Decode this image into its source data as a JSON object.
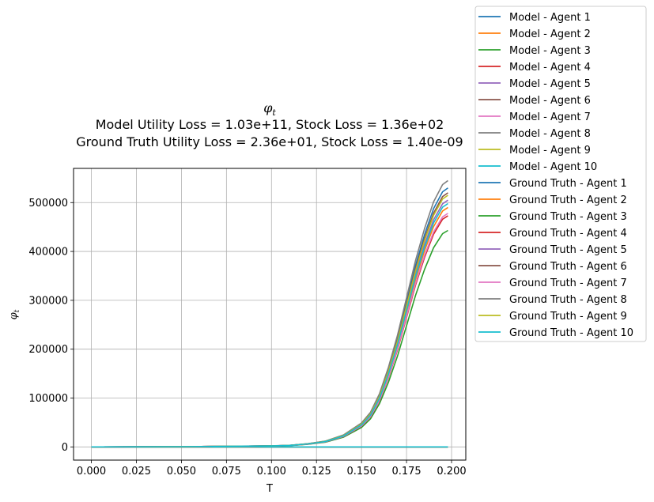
{
  "chart_data": {
    "type": "line",
    "title": "φ",
    "title_subscript": "t",
    "subtitle_lines": [
      "Model Utility Loss = 1.03e+11, Stock Loss = 1.36e+02",
      "Ground Truth Utility Loss = 2.36e+01, Stock Loss = 1.40e-09"
    ],
    "xlabel": "T",
    "ylabel": "φ",
    "ylabel_subscript": "t",
    "xlim": [
      -0.0099,
      0.2079
    ],
    "ylim": [
      -27000,
      570000
    ],
    "xticks": [
      0.0,
      0.025,
      0.05,
      0.075,
      0.1,
      0.125,
      0.15,
      0.175,
      0.2
    ],
    "xtick_labels": [
      "0.000",
      "0.025",
      "0.050",
      "0.075",
      "0.100",
      "0.125",
      "0.150",
      "0.175",
      "0.200"
    ],
    "yticks": [
      0,
      100000,
      200000,
      300000,
      400000,
      500000
    ],
    "ytick_labels": [
      "0",
      "100000",
      "200000",
      "300000",
      "400000",
      "500000"
    ],
    "grid": true,
    "legend_position": "outside-right",
    "x": [
      0.0,
      0.05,
      0.1,
      0.11,
      0.12,
      0.13,
      0.14,
      0.15,
      0.155,
      0.16,
      0.165,
      0.17,
      0.175,
      0.18,
      0.185,
      0.19,
      0.195,
      0.198
    ],
    "series": [
      {
        "name": "Model - Agent 1",
        "color": "#1f77b4",
        "final": 530000
      },
      {
        "name": "Model - Agent 2",
        "color": "#ff7f0e",
        "final": 490000
      },
      {
        "name": "Model - Agent 3",
        "color": "#2ca02c",
        "final": 443000
      },
      {
        "name": "Model - Agent 4",
        "color": "#d62728",
        "final": 473000
      },
      {
        "name": "Model - Agent 5",
        "color": "#9467bd",
        "final": 505000
      },
      {
        "name": "Model - Agent 6",
        "color": "#8c564b",
        "final": 520000
      },
      {
        "name": "Model - Agent 7",
        "color": "#e377c2",
        "final": 478000
      },
      {
        "name": "Model - Agent 8",
        "color": "#7f7f7f",
        "final": 545000
      },
      {
        "name": "Model - Agent 9",
        "color": "#bcbd22",
        "final": 515000
      },
      {
        "name": "Model - Agent 10",
        "color": "#17becf",
        "final": 498000
      },
      {
        "name": "Ground Truth - Agent 1",
        "color": "#1f77b4",
        "final": 0
      },
      {
        "name": "Ground Truth - Agent 2",
        "color": "#ff7f0e",
        "final": 0
      },
      {
        "name": "Ground Truth - Agent 3",
        "color": "#2ca02c",
        "final": 0
      },
      {
        "name": "Ground Truth - Agent 4",
        "color": "#d62728",
        "final": 0
      },
      {
        "name": "Ground Truth - Agent 5",
        "color": "#9467bd",
        "final": 0
      },
      {
        "name": "Ground Truth - Agent 6",
        "color": "#8c564b",
        "final": 0
      },
      {
        "name": "Ground Truth - Agent 7",
        "color": "#e377c2",
        "final": 0
      },
      {
        "name": "Ground Truth - Agent 8",
        "color": "#7f7f7f",
        "final": 0
      },
      {
        "name": "Ground Truth - Agent 9",
        "color": "#bcbd22",
        "final": 0
      },
      {
        "name": "Ground Truth - Agent 10",
        "color": "#17becf",
        "final": 0
      }
    ]
  }
}
